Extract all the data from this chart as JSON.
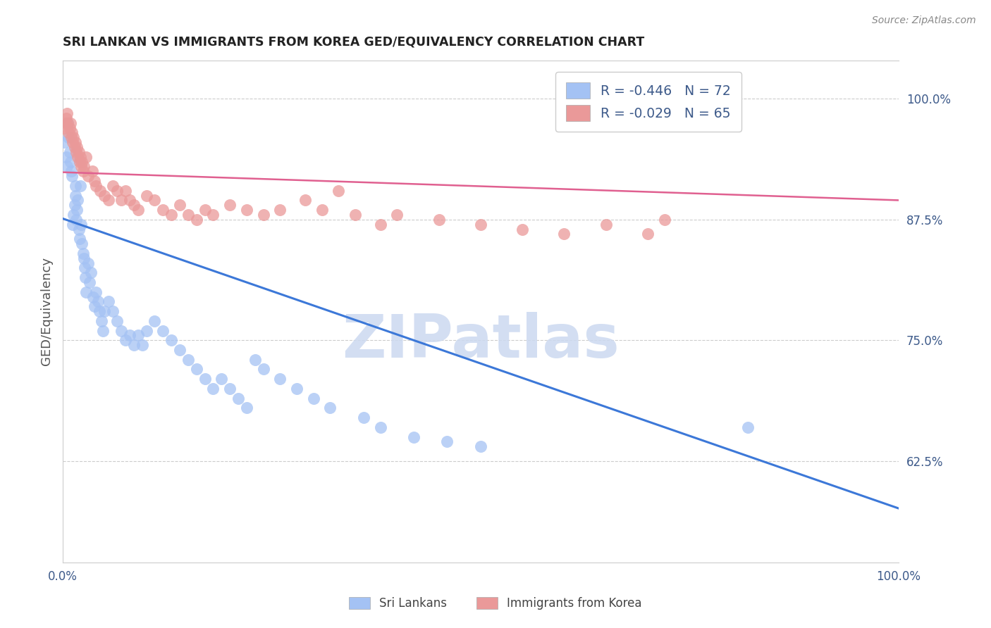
{
  "title": "SRI LANKAN VS IMMIGRANTS FROM KOREA GED/EQUIVALENCY CORRELATION CHART",
  "source": "Source: ZipAtlas.com",
  "ylabel": "GED/Equivalency",
  "blue_label": "Sri Lankans",
  "pink_label": "Immigrants from Korea",
  "blue_r": "-0.446",
  "blue_n": "72",
  "pink_r": "-0.029",
  "pink_n": "65",
  "blue_color": "#a4c2f4",
  "pink_color": "#ea9999",
  "blue_line_color": "#3c78d8",
  "pink_line_color": "#e06090",
  "watermark_color": "#ccd9f0",
  "title_color": "#222222",
  "axis_label_color": "#3d5a8a",
  "source_color": "#888888",
  "grid_color": "#cccccc",
  "xlim": [
    0.0,
    1.0
  ],
  "ylim": [
    0.52,
    1.04
  ],
  "yticks": [
    0.625,
    0.75,
    0.875,
    1.0
  ],
  "ytick_labels": [
    "62.5%",
    "75.0%",
    "87.5%",
    "100.0%"
  ],
  "blue_x": [
    0.002,
    0.004,
    0.005,
    0.006,
    0.007,
    0.008,
    0.009,
    0.01,
    0.011,
    0.012,
    0.013,
    0.014,
    0.015,
    0.015,
    0.016,
    0.017,
    0.018,
    0.019,
    0.02,
    0.021,
    0.022,
    0.023,
    0.024,
    0.025,
    0.026,
    0.027,
    0.028,
    0.03,
    0.032,
    0.034,
    0.036,
    0.038,
    0.04,
    0.042,
    0.044,
    0.046,
    0.048,
    0.05,
    0.055,
    0.06,
    0.065,
    0.07,
    0.075,
    0.08,
    0.085,
    0.09,
    0.095,
    0.1,
    0.11,
    0.12,
    0.13,
    0.14,
    0.15,
    0.16,
    0.17,
    0.18,
    0.19,
    0.2,
    0.21,
    0.22,
    0.23,
    0.24,
    0.26,
    0.28,
    0.3,
    0.32,
    0.36,
    0.38,
    0.42,
    0.46,
    0.5,
    0.82
  ],
  "blue_y": [
    0.955,
    0.94,
    0.93,
    0.975,
    0.96,
    0.945,
    0.935,
    0.925,
    0.92,
    0.87,
    0.88,
    0.89,
    0.9,
    0.91,
    0.875,
    0.885,
    0.895,
    0.865,
    0.855,
    0.91,
    0.87,
    0.85,
    0.84,
    0.835,
    0.825,
    0.815,
    0.8,
    0.83,
    0.81,
    0.82,
    0.795,
    0.785,
    0.8,
    0.79,
    0.78,
    0.77,
    0.76,
    0.78,
    0.79,
    0.78,
    0.77,
    0.76,
    0.75,
    0.755,
    0.745,
    0.755,
    0.745,
    0.76,
    0.77,
    0.76,
    0.75,
    0.74,
    0.73,
    0.72,
    0.71,
    0.7,
    0.71,
    0.7,
    0.69,
    0.68,
    0.73,
    0.72,
    0.71,
    0.7,
    0.69,
    0.68,
    0.67,
    0.66,
    0.65,
    0.645,
    0.64,
    0.66
  ],
  "pink_x": [
    0.002,
    0.003,
    0.004,
    0.005,
    0.006,
    0.007,
    0.008,
    0.009,
    0.01,
    0.011,
    0.012,
    0.013,
    0.014,
    0.015,
    0.016,
    0.017,
    0.018,
    0.019,
    0.02,
    0.021,
    0.022,
    0.023,
    0.024,
    0.025,
    0.028,
    0.03,
    0.035,
    0.038,
    0.04,
    0.045,
    0.05,
    0.055,
    0.06,
    0.065,
    0.07,
    0.075,
    0.08,
    0.085,
    0.09,
    0.1,
    0.11,
    0.12,
    0.13,
    0.14,
    0.15,
    0.16,
    0.17,
    0.18,
    0.2,
    0.22,
    0.24,
    0.26,
    0.29,
    0.31,
    0.33,
    0.35,
    0.38,
    0.4,
    0.45,
    0.5,
    0.55,
    0.6,
    0.65,
    0.7,
    0.72
  ],
  "pink_y": [
    0.97,
    0.975,
    0.98,
    0.985,
    0.975,
    0.965,
    0.97,
    0.975,
    0.96,
    0.965,
    0.955,
    0.96,
    0.95,
    0.955,
    0.945,
    0.95,
    0.94,
    0.945,
    0.935,
    0.94,
    0.93,
    0.935,
    0.925,
    0.93,
    0.94,
    0.92,
    0.925,
    0.915,
    0.91,
    0.905,
    0.9,
    0.895,
    0.91,
    0.905,
    0.895,
    0.905,
    0.895,
    0.89,
    0.885,
    0.9,
    0.895,
    0.885,
    0.88,
    0.89,
    0.88,
    0.875,
    0.885,
    0.88,
    0.89,
    0.885,
    0.88,
    0.885,
    0.895,
    0.885,
    0.905,
    0.88,
    0.87,
    0.88,
    0.875,
    0.87,
    0.865,
    0.86,
    0.87,
    0.86,
    0.875
  ]
}
